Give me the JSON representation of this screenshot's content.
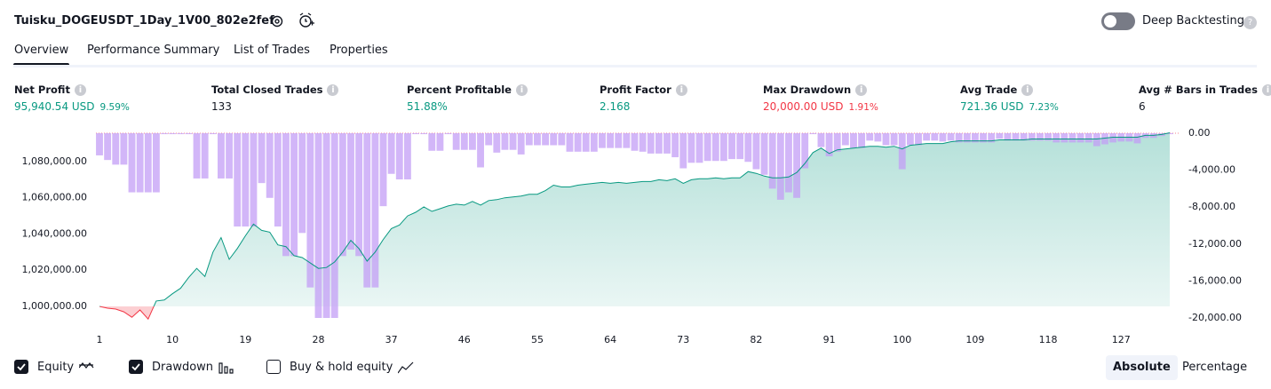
{
  "header": {
    "title": "Tuisku_DOGEUSDT_1Day_1V00_802e2fef",
    "toggle_label": "Deep Backtesting",
    "toggle_on": false
  },
  "tabs": [
    "Overview",
    "Performance Summary",
    "List of Trades",
    "Properties"
  ],
  "active_tab": 0,
  "metrics": [
    {
      "label": "Net Profit",
      "value": "95,940.54 USD",
      "pct": "9.59%",
      "color": "#089981"
    },
    {
      "label": "Total Closed Trades",
      "value": "133",
      "color": "#131722"
    },
    {
      "label": "Percent Profitable",
      "value": "51.88%",
      "color": "#089981"
    },
    {
      "label": "Profit Factor",
      "value": "2.168",
      "color": "#089981"
    },
    {
      "label": "Max Drawdown",
      "value": "20,000.00 USD",
      "pct": "1.91%",
      "color": "#f23645"
    },
    {
      "label": "Avg Trade",
      "value": "721.36 USD",
      "pct": "7.23%",
      "color": "#089981"
    },
    {
      "label": "Avg # Bars in Trades",
      "value": "6",
      "color": "#131722"
    }
  ],
  "chart_data": {
    "type": "line",
    "x": [
      1,
      2,
      3,
      4,
      5,
      6,
      7,
      8,
      9,
      10,
      11,
      12,
      13,
      14,
      15,
      16,
      17,
      18,
      19,
      20,
      21,
      22,
      23,
      24,
      25,
      26,
      27,
      28,
      29,
      30,
      31,
      32,
      33,
      34,
      35,
      36,
      37,
      38,
      39,
      40,
      41,
      42,
      43,
      44,
      45,
      46,
      47,
      48,
      49,
      50,
      51,
      52,
      53,
      54,
      55,
      56,
      57,
      58,
      59,
      60,
      61,
      62,
      63,
      64,
      65,
      66,
      67,
      68,
      69,
      70,
      71,
      72,
      73,
      74,
      75,
      76,
      77,
      78,
      79,
      80,
      81,
      82,
      83,
      84,
      85,
      86,
      87,
      88,
      89,
      90,
      91,
      92,
      93,
      94,
      95,
      96,
      97,
      98,
      99,
      100,
      101,
      102,
      103,
      104,
      105,
      106,
      107,
      108,
      109,
      110,
      111,
      112,
      113,
      114,
      115,
      116,
      117,
      118,
      119,
      120,
      121,
      122,
      123,
      124,
      125,
      126,
      127,
      128,
      129,
      130,
      131,
      132,
      133
    ],
    "xlim": [
      1,
      133
    ],
    "xticks": [
      1,
      10,
      19,
      28,
      37,
      46,
      55,
      64,
      73,
      82,
      91,
      100,
      109,
      118,
      127
    ],
    "ylim": [
      993600,
      1095700
    ],
    "yticks": [
      {
        "value": 1000000,
        "label": "1,000,000.00"
      },
      {
        "value": 1020000,
        "label": "1,020,000.00"
      },
      {
        "value": 1040000,
        "label": "1,040,000.00"
      },
      {
        "value": 1060000,
        "label": "1,060,000.00"
      },
      {
        "value": 1080000,
        "label": "1,080,000.00"
      }
    ],
    "y2lim": [
      -20000,
      0
    ],
    "y2ticks": [
      {
        "value": 0,
        "label": "0.00"
      },
      {
        "value": -4000,
        "label": "-4,000.00"
      },
      {
        "value": -8000,
        "label": "-8,000.00"
      },
      {
        "value": -12000,
        "label": "-12,000.00"
      },
      {
        "value": -16000,
        "label": "-16,000.00"
      },
      {
        "value": -20000,
        "label": "-20,000.00"
      }
    ],
    "negative_color": "#f23645",
    "series": [
      {
        "name": "Equity",
        "color": "#089981",
        "visible": true,
        "values": [
          1000000,
          999000,
          998500,
          997000,
          994000,
          998000,
          993000,
          1003000,
          1003500,
          1007000,
          1010000,
          1016000,
          1021000,
          1016500,
          1030000,
          1038000,
          1026000,
          1032000,
          1039000,
          1045500,
          1042000,
          1041000,
          1034000,
          1033000,
          1028000,
          1027000,
          1024000,
          1021000,
          1021500,
          1024500,
          1030000,
          1036500,
          1032000,
          1025000,
          1030000,
          1037000,
          1043000,
          1045000,
          1050000,
          1052000,
          1055000,
          1052500,
          1054000,
          1055500,
          1056500,
          1056000,
          1058000,
          1056000,
          1058500,
          1059000,
          1060000,
          1060500,
          1061000,
          1062000,
          1062000,
          1064000,
          1067000,
          1066000,
          1066000,
          1067000,
          1067500,
          1068000,
          1068500,
          1068000,
          1068500,
          1068000,
          1068500,
          1069000,
          1069000,
          1070000,
          1069500,
          1070500,
          1068000,
          1070000,
          1070500,
          1070500,
          1071000,
          1070500,
          1071000,
          1071000,
          1074500,
          1073500,
          1072000,
          1071000,
          1071000,
          1071500,
          1074000,
          1079000,
          1085000,
          1087500,
          1084500,
          1086500,
          1087000,
          1087500,
          1088000,
          1088500,
          1088500,
          1088000,
          1088500,
          1087000,
          1089000,
          1089500,
          1090000,
          1090000,
          1090000,
          1091000,
          1091500,
          1091500,
          1091500,
          1091500,
          1091500,
          1092000,
          1092000,
          1092000,
          1092000,
          1092500,
          1092500,
          1092500,
          1092500,
          1092500,
          1092500,
          1092500,
          1092500,
          1092500,
          1093000,
          1093500,
          1093500,
          1093500,
          1093500,
          1094500,
          1094500,
          1095000,
          1095940
        ]
      },
      {
        "name": "Drawdown",
        "type": "bar",
        "axis": "y2",
        "color": "#c39df5",
        "visible": true,
        "values": [
          -2400,
          -2900,
          -3400,
          -3400,
          -6400,
          -6400,
          -6400,
          -6400,
          -100,
          -100,
          -100,
          -100,
          -4900,
          -4900,
          -100,
          -4900,
          -4900,
          -10100,
          -10100,
          -10100,
          -5400,
          -7000,
          -10100,
          -13300,
          -13300,
          -10800,
          -16700,
          -20000,
          -20000,
          -20000,
          -13300,
          -12600,
          -13300,
          -16700,
          -16700,
          -7900,
          -4400,
          -5000,
          -5000,
          -100,
          -100,
          -1900,
          -1900,
          -100,
          -1800,
          -1800,
          -1800,
          -3700,
          -1300,
          -2100,
          -1800,
          -1800,
          -2300,
          -1300,
          -1300,
          -1300,
          -1300,
          -1300,
          -2000,
          -2000,
          -2000,
          -2000,
          -1600,
          -1600,
          -1600,
          -1600,
          -1900,
          -2000,
          -2200,
          -2200,
          -2200,
          -2600,
          -3800,
          -3200,
          -3200,
          -3000,
          -3000,
          -3000,
          -2800,
          -2800,
          -3100,
          -3900,
          -4500,
          -6000,
          -7200,
          -6400,
          -7000,
          -3800,
          -100,
          -1500,
          -2500,
          -2000,
          -1300,
          -1600,
          -1600,
          -800,
          -900,
          -1300,
          -1300,
          -3900,
          -1300,
          -1300,
          -800,
          -800,
          -900,
          -800,
          -1000,
          -1000,
          -1000,
          -1000,
          -1000,
          -600,
          -800,
          -800,
          -800,
          -800,
          -800,
          -800,
          -1000,
          -1000,
          -1000,
          -1000,
          -1000,
          -1400,
          -1200,
          -1000,
          -900,
          -900,
          -1100,
          -500,
          -500,
          -300,
          -100
        ]
      }
    ]
  },
  "footer": {
    "extra_option": {
      "label": "Buy & hold equity",
      "checked": false
    },
    "modes": [
      "Absolute",
      "Percentage"
    ],
    "active_mode": 0
  }
}
